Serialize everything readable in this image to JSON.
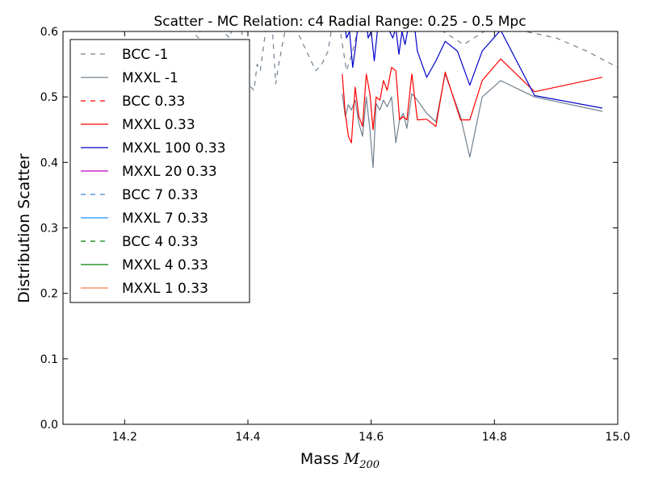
{
  "chart_data": {
    "type": "line",
    "title": "Scatter - MC Relation: c4 Radial Range: 0.25 - 0.5 Mpc",
    "xlabel_text": "Mass ",
    "xlabel_math": "M",
    "xlabel_sub": "200",
    "ylabel": "Distribution Scatter",
    "xlim": [
      14.1,
      15.0
    ],
    "ylim": [
      0.0,
      0.6
    ],
    "xticks": [
      14.2,
      14.4,
      14.6,
      14.8,
      15.0
    ],
    "xtick_labels": [
      "14.2",
      "14.4",
      "14.6",
      "14.8",
      "15.0"
    ],
    "yticks": [
      0.0,
      0.1,
      0.2,
      0.3,
      0.4,
      0.5,
      0.6
    ],
    "ytick_labels": [
      "0.0",
      "0.1",
      "0.2",
      "0.3",
      "0.4",
      "0.5",
      "0.6"
    ],
    "grid": false,
    "legend_position": "upper-left",
    "series": [
      {
        "name": "BCC -1",
        "color": "#708090",
        "dash": "dashed",
        "x": [
          14.3,
          14.31,
          14.32,
          14.33,
          14.34,
          14.35,
          14.36,
          14.37,
          14.38,
          14.39,
          14.4,
          14.41,
          14.415,
          14.42,
          14.43,
          14.44,
          14.445,
          14.45,
          14.46,
          14.47,
          14.48,
          14.49,
          14.5,
          14.51,
          14.52,
          14.53,
          14.54,
          14.55,
          14.56,
          14.57,
          14.58,
          14.59,
          14.6,
          14.62,
          14.64,
          14.66,
          14.7,
          14.75,
          14.8,
          14.85,
          14.9,
          14.95,
          15.0
        ],
        "y": [
          0.62,
          0.6,
          0.59,
          0.63,
          0.61,
          0.64,
          0.6,
          0.59,
          0.62,
          0.6,
          0.52,
          0.51,
          0.55,
          0.54,
          0.61,
          0.6,
          0.52,
          0.55,
          0.6,
          0.62,
          0.6,
          0.58,
          0.56,
          0.54,
          0.55,
          0.57,
          0.63,
          0.6,
          0.54,
          0.57,
          0.61,
          0.64,
          0.6,
          0.63,
          0.62,
          0.6,
          0.61,
          0.58,
          0.61,
          0.6,
          0.59,
          0.57,
          0.545
        ]
      },
      {
        "name": "MXXL -1",
        "color": "#708090",
        "dash": "solid",
        "x": [
          14.553,
          14.558,
          14.563,
          14.568,
          14.574,
          14.58,
          14.586,
          14.592,
          14.598,
          14.603,
          14.608,
          14.614,
          14.62,
          14.626,
          14.633,
          14.64,
          14.646,
          14.652,
          14.658,
          14.666,
          14.675,
          14.69,
          14.705,
          14.72,
          14.745,
          14.76,
          14.78,
          14.81,
          14.865,
          14.975
        ],
        "y": [
          0.505,
          0.47,
          0.488,
          0.48,
          0.495,
          0.46,
          0.44,
          0.5,
          0.45,
          0.392,
          0.49,
          0.48,
          0.495,
          0.485,
          0.5,
          0.43,
          0.465,
          0.475,
          0.452,
          0.505,
          0.495,
          0.475,
          0.462,
          0.535,
          0.47,
          0.408,
          0.5,
          0.525,
          0.5,
          0.478
        ]
      },
      {
        "name": "BCC 0.33",
        "color": "#ff0000",
        "dash": "dashed",
        "x": [],
        "y": []
      },
      {
        "name": "MXXL 0.33",
        "color": "#ff0000",
        "dash": "solid",
        "x": [
          14.553,
          14.558,
          14.563,
          14.568,
          14.574,
          14.58,
          14.586,
          14.592,
          14.598,
          14.603,
          14.608,
          14.614,
          14.62,
          14.626,
          14.633,
          14.64,
          14.646,
          14.652,
          14.658,
          14.666,
          14.675,
          14.69,
          14.705,
          14.72,
          14.745,
          14.76,
          14.78,
          14.81,
          14.865,
          14.975
        ],
        "y": [
          0.535,
          0.475,
          0.44,
          0.43,
          0.515,
          0.47,
          0.455,
          0.535,
          0.505,
          0.45,
          0.5,
          0.495,
          0.525,
          0.51,
          0.545,
          0.54,
          0.465,
          0.47,
          0.465,
          0.535,
          0.465,
          0.466,
          0.455,
          0.538,
          0.465,
          0.465,
          0.525,
          0.558,
          0.508,
          0.53
        ]
      },
      {
        "name": "MXXL 100 0.33",
        "color": "#0000cc",
        "dash": "solid",
        "x": [
          14.555,
          14.56,
          14.565,
          14.57,
          14.575,
          14.58,
          14.585,
          14.59,
          14.595,
          14.6,
          14.605,
          14.61,
          14.615,
          14.62,
          14.625,
          14.63,
          14.635,
          14.64,
          14.645,
          14.65,
          14.655,
          14.66,
          14.665,
          14.67,
          14.675,
          14.69,
          14.705,
          14.72,
          14.74,
          14.76,
          14.78,
          14.81,
          14.865,
          14.975
        ],
        "y": [
          0.63,
          0.59,
          0.6,
          0.545,
          0.58,
          0.62,
          0.6,
          0.64,
          0.59,
          0.6,
          0.555,
          0.6,
          0.62,
          0.61,
          0.64,
          0.6,
          0.59,
          0.605,
          0.565,
          0.6,
          0.58,
          0.605,
          0.6,
          0.61,
          0.57,
          0.53,
          0.555,
          0.585,
          0.57,
          0.518,
          0.57,
          0.602,
          0.502,
          0.483
        ]
      },
      {
        "name": "MXXL 20 0.33",
        "color": "#bf00bf",
        "dash": "solid",
        "x": [],
        "y": []
      },
      {
        "name": "BCC 7 0.33",
        "color": "#3d85c6",
        "dash": "dashed",
        "x": [],
        "y": []
      },
      {
        "name": "MXXL 7 0.33",
        "color": "#1e90ff",
        "dash": "solid",
        "x": [],
        "y": []
      },
      {
        "name": "BCC 4 0.33",
        "color": "#008000",
        "dash": "dashed",
        "x": [],
        "y": []
      },
      {
        "name": "MXXL 4 0.33",
        "color": "#008000",
        "dash": "solid",
        "x": [],
        "y": []
      },
      {
        "name": "MXXL 1 0.33",
        "color": "#ff7f50",
        "dash": "solid",
        "x": [],
        "y": []
      }
    ]
  }
}
